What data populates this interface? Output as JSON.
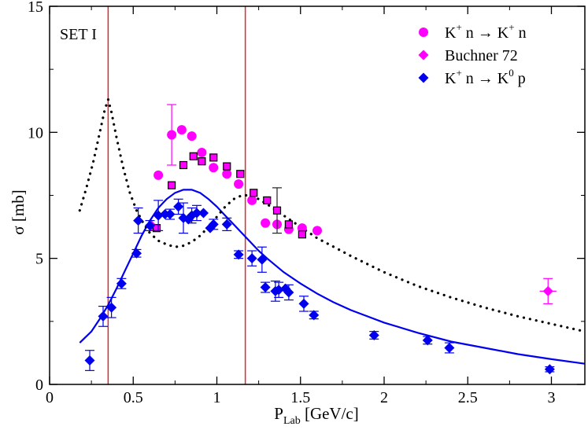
{
  "chart_data": {
    "type": "scatter",
    "set_label": "SET I",
    "xlabel": {
      "main": "P",
      "sub": "Lab",
      "rest": " [GeV/c]"
    },
    "ylabel": "σ [mb]",
    "xlim": [
      0,
      3.2
    ],
    "ylim": [
      0,
      15
    ],
    "x_ticks": [
      0,
      0.5,
      1,
      1.5,
      2,
      2.5,
      3
    ],
    "x_tick_labels": [
      "0",
      "0.5",
      "1",
      "1.5",
      "2",
      "2.5",
      "3"
    ],
    "y_ticks": [
      0,
      5,
      10,
      15
    ],
    "y_tick_labels": [
      "0",
      "5",
      "10",
      "15"
    ],
    "grid": false,
    "legend_position": "top-right",
    "vertical_lines": [
      0.35,
      1.17
    ],
    "colors": {
      "magenta": "#ff00ff",
      "blue": "#0000ee",
      "vline": "#e8232b",
      "black": "#000000"
    },
    "legend": [
      {
        "marker": "circle",
        "color": "#ff00ff",
        "parts": [
          "K",
          "+",
          " n → K",
          "+",
          " n"
        ]
      },
      {
        "marker": "diamond",
        "color": "#ff00ff",
        "parts": [
          "Buchner 72",
          "",
          "",
          "",
          ""
        ]
      },
      {
        "marker": "diamond",
        "color": "#0000ee",
        "parts": [
          "K",
          "+",
          " n → K",
          "0",
          " p"
        ]
      }
    ],
    "series": [
      {
        "name": "K+ n → K+ n",
        "marker": "circle",
        "color": "#ff00ff",
        "points": [
          {
            "x": 0.65,
            "y": 8.3
          },
          {
            "x": 0.73,
            "y": 9.9,
            "yerr": 1.2
          },
          {
            "x": 0.79,
            "y": 10.1
          },
          {
            "x": 0.85,
            "y": 9.85
          },
          {
            "x": 0.91,
            "y": 9.2
          },
          {
            "x": 0.98,
            "y": 8.6
          },
          {
            "x": 1.06,
            "y": 8.35
          },
          {
            "x": 1.13,
            "y": 7.95
          },
          {
            "x": 1.21,
            "y": 7.3
          },
          {
            "x": 1.29,
            "y": 6.4
          },
          {
            "x": 1.36,
            "y": 6.35
          },
          {
            "x": 1.43,
            "y": 6.15
          },
          {
            "x": 1.51,
            "y": 6.2
          },
          {
            "x": 1.6,
            "y": 6.1
          }
        ]
      },
      {
        "name": "Buchner 72",
        "marker": "diamond",
        "color": "#ff00ff",
        "points": [
          {
            "x": 0.61,
            "y": 6.3
          },
          {
            "x": 2.98,
            "y": 3.7,
            "yerr": 0.5,
            "xerr": 0.05
          }
        ]
      },
      {
        "name": "squares",
        "marker": "square",
        "color": "#ff00ff",
        "points": [
          {
            "x": 0.64,
            "y": 6.2
          },
          {
            "x": 0.73,
            "y": 7.9
          },
          {
            "x": 0.8,
            "y": 8.7
          },
          {
            "x": 0.86,
            "y": 9.05
          },
          {
            "x": 0.91,
            "y": 8.85
          },
          {
            "x": 0.98,
            "y": 9.0
          },
          {
            "x": 1.06,
            "y": 8.65
          },
          {
            "x": 1.14,
            "y": 8.35
          },
          {
            "x": 1.22,
            "y": 7.6
          },
          {
            "x": 1.3,
            "y": 7.3
          },
          {
            "x": 1.36,
            "y": 6.9,
            "yerr": 0.9
          },
          {
            "x": 1.43,
            "y": 6.35
          },
          {
            "x": 1.51,
            "y": 5.95
          }
        ]
      },
      {
        "name": "K+ n → K0 p",
        "marker": "diamond",
        "color": "#0000ee",
        "points": [
          {
            "x": 0.24,
            "y": 0.95,
            "yerr": 0.4
          },
          {
            "x": 0.32,
            "y": 2.7,
            "yerr": 0.4
          },
          {
            "x": 0.37,
            "y": 3.05,
            "yerr": 0.4
          },
          {
            "x": 0.43,
            "y": 4.0,
            "yerr": 0.2
          },
          {
            "x": 0.52,
            "y": 5.2,
            "yerr": 0.15
          },
          {
            "x": 0.53,
            "y": 6.5,
            "yerr": 0.5
          },
          {
            "x": 0.6,
            "y": 6.3,
            "yerr": 0.2
          },
          {
            "x": 0.65,
            "y": 6.7,
            "yerr": 0.6
          },
          {
            "x": 0.69,
            "y": 6.75
          },
          {
            "x": 0.72,
            "y": 6.75,
            "yerr": 0.2
          },
          {
            "x": 0.77,
            "y": 7.05,
            "yerr": 0.3
          },
          {
            "x": 0.8,
            "y": 6.6,
            "yerr": 0.6
          },
          {
            "x": 0.83,
            "y": 6.55
          },
          {
            "x": 0.85,
            "y": 6.7,
            "yerr": 0.3
          },
          {
            "x": 0.88,
            "y": 6.8,
            "yerr": 0.3
          },
          {
            "x": 0.92,
            "y": 6.8
          },
          {
            "x": 0.96,
            "y": 6.2
          },
          {
            "x": 0.98,
            "y": 6.35,
            "yerr": 0.2
          },
          {
            "x": 1.06,
            "y": 6.35,
            "yerr": 0.25
          },
          {
            "x": 1.13,
            "y": 5.15,
            "yerr": 0.15
          },
          {
            "x": 1.21,
            "y": 5.0,
            "yerr": 0.3
          },
          {
            "x": 1.27,
            "y": 4.95,
            "yerr": 0.5
          },
          {
            "x": 1.29,
            "y": 3.85,
            "yerr": 0.2
          },
          {
            "x": 1.35,
            "y": 3.7,
            "yerr": 0.4
          },
          {
            "x": 1.37,
            "y": 3.75,
            "yerr": 0.3
          },
          {
            "x": 1.41,
            "y": 3.8
          },
          {
            "x": 1.43,
            "y": 3.65,
            "yerr": 0.3
          },
          {
            "x": 1.52,
            "y": 3.2,
            "yerr": 0.3
          },
          {
            "x": 1.58,
            "y": 2.75,
            "yerr": 0.15
          },
          {
            "x": 1.94,
            "y": 1.95,
            "yerr": 0.15
          },
          {
            "x": 2.26,
            "y": 1.75,
            "yerr": 0.15
          },
          {
            "x": 2.39,
            "y": 1.45,
            "yerr": 0.2
          },
          {
            "x": 2.99,
            "y": 0.6,
            "yerr": 0.1
          }
        ]
      }
    ],
    "curves": [
      {
        "style": "solid",
        "color": "#0000ee",
        "x": [
          0.18,
          0.25,
          0.3,
          0.35,
          0.4,
          0.45,
          0.5,
          0.55,
          0.6,
          0.65,
          0.7,
          0.75,
          0.8,
          0.85,
          0.9,
          0.95,
          1.0,
          1.05,
          1.1,
          1.15,
          1.2,
          1.25,
          1.3,
          1.4,
          1.5,
          1.6,
          1.7,
          1.8,
          1.9,
          2.0,
          2.2,
          2.4,
          2.6,
          2.8,
          3.0,
          3.2
        ],
        "y": [
          1.65,
          2.1,
          2.6,
          3.15,
          3.8,
          4.5,
          5.2,
          5.9,
          6.5,
          7.0,
          7.35,
          7.6,
          7.72,
          7.72,
          7.6,
          7.35,
          7.05,
          6.7,
          6.35,
          6.0,
          5.65,
          5.3,
          5.0,
          4.45,
          4.0,
          3.6,
          3.25,
          2.95,
          2.7,
          2.45,
          2.05,
          1.7,
          1.45,
          1.2,
          1.0,
          0.82
        ]
      },
      {
        "style": "dotted",
        "color": "#000000",
        "x": [
          0.18,
          0.22,
          0.26,
          0.3,
          0.33,
          0.35,
          0.37,
          0.4,
          0.44,
          0.48,
          0.52,
          0.56,
          0.6,
          0.65,
          0.7,
          0.75,
          0.8,
          0.85,
          0.9,
          0.95,
          1.0,
          1.05,
          1.1,
          1.15,
          1.2,
          1.25,
          1.3,
          1.4,
          1.5,
          1.6,
          1.7,
          1.8,
          2.0,
          2.2,
          2.4,
          2.6,
          2.8,
          3.0,
          3.2
        ],
        "y": [
          6.9,
          7.8,
          8.8,
          10.0,
          10.9,
          11.3,
          10.8,
          9.8,
          8.6,
          7.6,
          6.9,
          6.4,
          6.0,
          5.7,
          5.55,
          5.45,
          5.5,
          5.65,
          5.9,
          6.25,
          6.65,
          7.05,
          7.35,
          7.5,
          7.5,
          7.35,
          7.15,
          6.7,
          6.25,
          5.8,
          5.45,
          5.1,
          4.45,
          3.9,
          3.45,
          3.05,
          2.7,
          2.4,
          2.1
        ]
      }
    ]
  }
}
